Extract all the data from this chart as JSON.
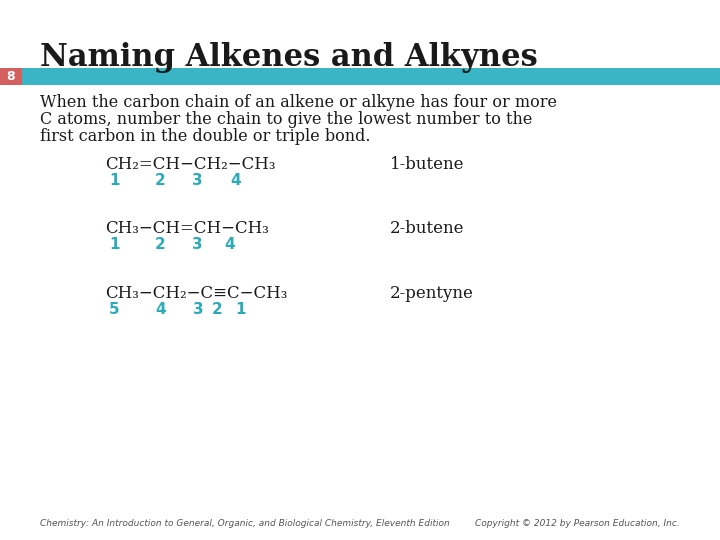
{
  "title": "Naming Alkenes and Alkynes",
  "slide_number": "8",
  "background_color": "#ffffff",
  "title_color": "#1a1a1a",
  "title_fontsize": 22,
  "bar_color": "#3ab5c6",
  "bar_red_color": "#d45f5f",
  "body_text_line1": "When the carbon chain of an alkene or alkyne has four or more",
  "body_text_line2": "C atoms, number the chain to give the lowest number to the",
  "body_text_line3": "first carbon in the double or triple bond.",
  "body_fontsize": 11.5,
  "formula_color": "#1a1a1a",
  "number_color": "#2aabba",
  "name_color": "#1a1a1a",
  "formula_fontsize": 12,
  "number_fontsize": 11,
  "name_fontsize": 12,
  "footer_left": "Chemistry: An Introduction to General, Organic, and Biological Chemistry, Eleventh Edition",
  "footer_right": "Copyright © 2012 by Pearson Education, Inc.",
  "footer_fontsize": 6.5
}
